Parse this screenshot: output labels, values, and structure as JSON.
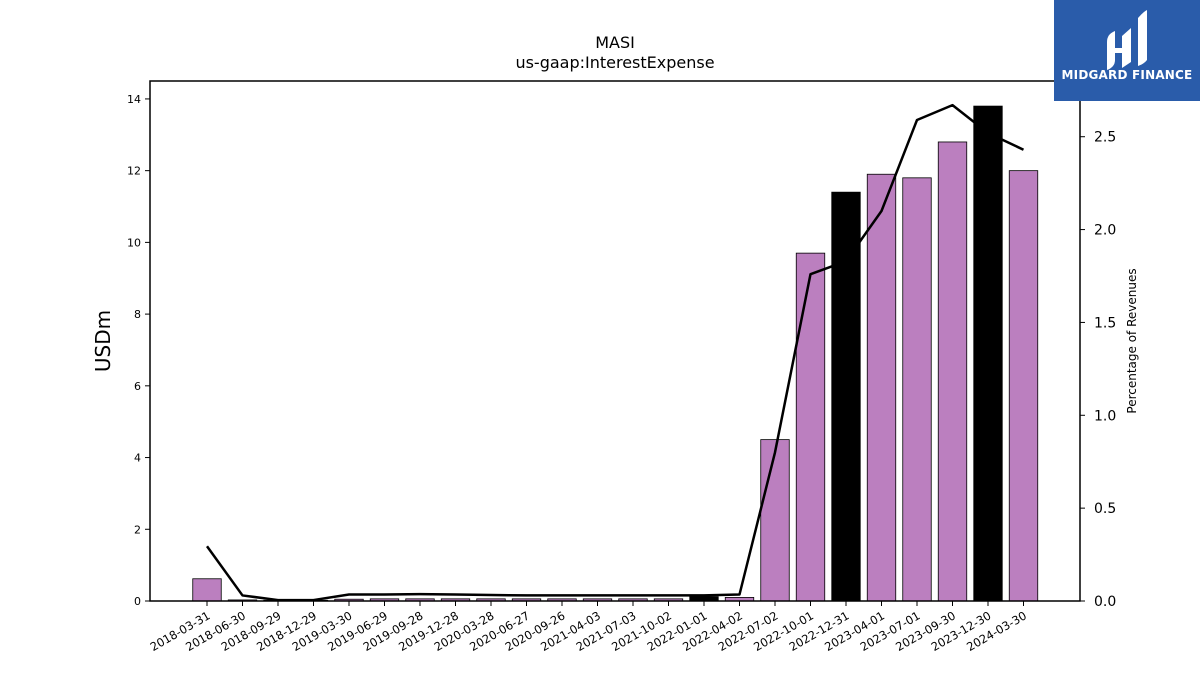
{
  "chart_data": {
    "type": "bar",
    "title": "MASI",
    "subtitle": "us-gaap:InterestExpense",
    "ylabel": "USDm",
    "y2label": "Percentage of Revenues",
    "ylim": [
      0,
      14.5
    ],
    "y2lim": [
      0,
      2.8
    ],
    "yticks": [
      0,
      2,
      4,
      6,
      8,
      10,
      12,
      14
    ],
    "y2ticks": [
      "0.0",
      "0.5",
      "1.0",
      "1.5",
      "2.0",
      "2.5"
    ],
    "categories": [
      "2018-03-31",
      "2018-06-30",
      "2018-09-29",
      "2018-12-29",
      "2019-03-30",
      "2019-06-29",
      "2019-09-28",
      "2019-12-28",
      "2020-03-28",
      "2020-06-27",
      "2020-09-26",
      "2021-04-03",
      "2021-07-03",
      "2021-10-02",
      "2022-01-01",
      "2022-04-02",
      "2022-07-02",
      "2022-10-01",
      "2022-12-31",
      "2023-04-01",
      "2023-07-01",
      "2023-09-30",
      "2023-12-30",
      "2024-03-30"
    ],
    "series": [
      {
        "kind": "bar",
        "values": [
          0.62,
          0.03,
          0.02,
          0.02,
          0.05,
          0.06,
          0.06,
          0.06,
          0.06,
          0.06,
          0.06,
          0.06,
          0.06,
          0.06,
          0.12,
          0.1,
          4.5,
          9.7,
          11.4,
          11.9,
          11.8,
          12.8,
          13.8,
          12.0
        ],
        "colors": [
          "#bb7fbf",
          "#bb7fbf",
          "#bb7fbf",
          "#bb7fbf",
          "#bb7fbf",
          "#bb7fbf",
          "#bb7fbf",
          "#bb7fbf",
          "#bb7fbf",
          "#bb7fbf",
          "#bb7fbf",
          "#bb7fbf",
          "#bb7fbf",
          "#bb7fbf",
          "#000000",
          "#bb7fbf",
          "#bb7fbf",
          "#bb7fbf",
          "#000000",
          "#bb7fbf",
          "#bb7fbf",
          "#bb7fbf",
          "#000000",
          "#bb7fbf"
        ]
      },
      {
        "kind": "line",
        "axis": "right",
        "values": [
          0.295,
          0.03,
          0.005,
          0.005,
          0.035,
          0.035,
          0.037,
          0.035,
          0.032,
          0.03,
          0.03,
          0.03,
          0.03,
          0.03,
          0.03,
          0.035,
          0.8,
          1.76,
          1.83,
          2.1,
          2.59,
          2.67,
          2.52,
          2.43
        ],
        "color": "#000000"
      }
    ],
    "grid": false,
    "legend": "none"
  },
  "logo": {
    "text": "MIDGARD FINANCE",
    "color": "#2a5caa"
  }
}
